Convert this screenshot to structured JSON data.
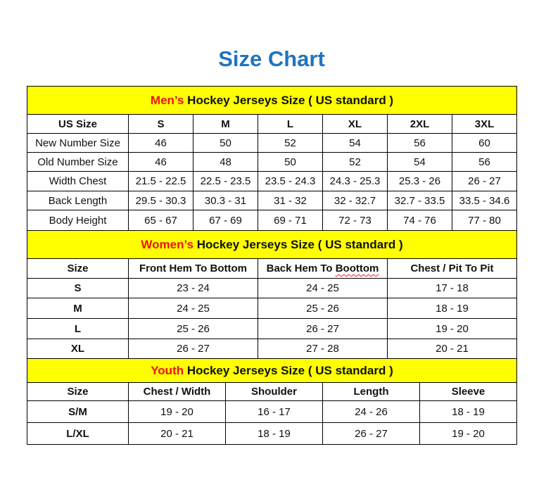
{
  "title": "Size Chart",
  "colors": {
    "title": "#1f74c0",
    "section_bg": "#ffff00",
    "section_highlight": "#ee1111"
  },
  "men": {
    "heading_highlight": "Men’s",
    "heading_rest": " Hockey Jerseys Size ( US standard )",
    "columns": [
      "US Size",
      "S",
      "M",
      "L",
      "XL",
      "2XL",
      "3XL"
    ],
    "rows": [
      [
        "New Number Size",
        "46",
        "50",
        "52",
        "54",
        "56",
        "60"
      ],
      [
        "Old Number Size",
        "46",
        "48",
        "50",
        "52",
        "54",
        "56"
      ],
      [
        "Width Chest",
        "21.5 - 22.5",
        "22.5 - 23.5",
        "23.5 - 24.3",
        "24.3 - 25.3",
        "25.3 - 26",
        "26 - 27"
      ],
      [
        "Back Length",
        "29.5 - 30.3",
        "30.3 - 31",
        "31 - 32",
        "32 - 32.7",
        "32.7 - 33.5",
        "33.5 - 34.6"
      ],
      [
        "Body Height",
        "65 - 67",
        "67 - 69",
        "69 - 71",
        "72 - 73",
        "74 - 76",
        "77 - 80"
      ]
    ]
  },
  "women": {
    "heading_highlight": "Women’s",
    "heading_rest": " Hockey Jerseys Size ( US standard )",
    "columns": [
      "Size",
      "Front Hem To Bottom",
      "Back Hem To Boottom",
      "Chest / Pit To Pit"
    ],
    "rows": [
      [
        "S",
        "23 - 24",
        "24 - 25",
        "17 - 18"
      ],
      [
        "M",
        "24 - 25",
        "25 - 26",
        "18 - 19"
      ],
      [
        "L",
        "25 - 26",
        "26 - 27",
        "19 - 20"
      ],
      [
        "XL",
        "26 - 27",
        "27 - 28",
        "20 - 21"
      ]
    ]
  },
  "youth": {
    "heading_highlight": "Youth",
    "heading_rest": " Hockey Jerseys Size ( US standard )",
    "columns": [
      "Size",
      "Chest / Width",
      "Shoulder",
      "Length",
      "Sleeve"
    ],
    "rows": [
      [
        "S/M",
        "19 - 20",
        "16 - 17",
        "24 - 26",
        "18 - 19"
      ],
      [
        "L/XL",
        "20 - 21",
        "18 - 19",
        "26 - 27",
        "19 - 20"
      ]
    ]
  }
}
